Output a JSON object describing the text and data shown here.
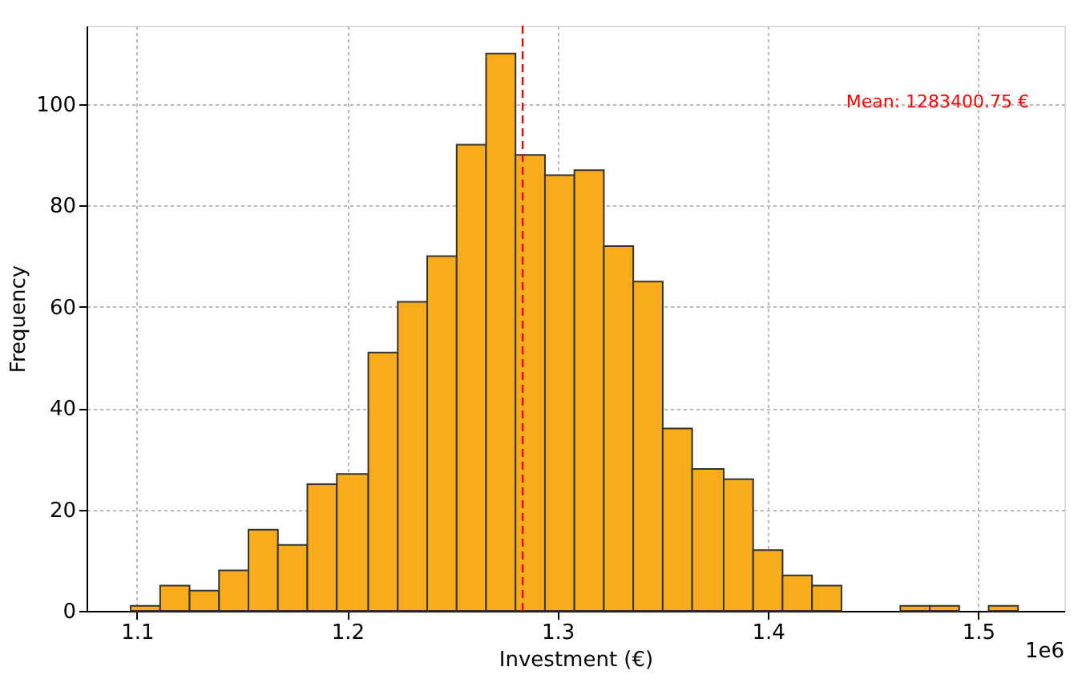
{
  "chart_data": {
    "type": "histogram",
    "xlabel": "Investment (€)",
    "ylabel": "Frequency",
    "bins": [
      1.097,
      1.111,
      1.125,
      1.139,
      1.153,
      1.167,
      1.181,
      1.195,
      1.21,
      1.224,
      1.238,
      1.252,
      1.266,
      1.28,
      1.294,
      1.308,
      1.322,
      1.336,
      1.35,
      1.364,
      1.379,
      1.393,
      1.407,
      1.421,
      1.435,
      1.463,
      1.477,
      1.491,
      1.505,
      1.519
    ],
    "values": [
      1,
      5,
      4,
      8,
      16,
      13,
      25,
      27,
      51,
      61,
      70,
      92,
      110,
      90,
      86,
      87,
      72,
      65,
      36,
      28,
      26,
      12,
      7,
      5,
      0,
      1,
      1,
      0,
      1
    ],
    "color": "#f8ac1c",
    "xlim": [
      1.076,
      1.541
    ],
    "xticks": [
      1.1,
      1.2,
      1.3,
      1.4,
      1.5
    ],
    "ylim": [
      0,
      115.5
    ],
    "yticks": [
      0,
      20,
      40,
      60,
      80,
      100
    ],
    "grid": true,
    "ref_lines": [
      {
        "axis": "x",
        "value": 1.28340075,
        "label": "Mean: 1283400.75 €",
        "color": "#ff0000",
        "line_style": "dashed"
      }
    ],
    "annotations": [
      "1e6"
    ]
  }
}
